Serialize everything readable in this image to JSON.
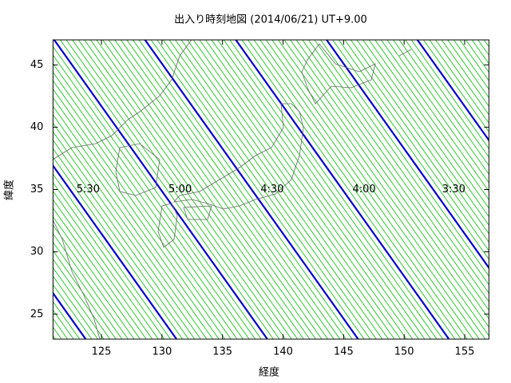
{
  "chart_data": {
    "type": "line",
    "title": "出入り時刻地図 (2014/06/21) UT+9.00",
    "xlabel": "経度",
    "ylabel": "緯度",
    "xlim": [
      121,
      157
    ],
    "ylim": [
      23,
      47
    ],
    "xticks": [
      125,
      130,
      135,
      140,
      145,
      150,
      155
    ],
    "yticks": [
      25,
      30,
      35,
      40,
      45
    ],
    "lat": [
      47,
      23
    ],
    "series": [
      {
        "color": "#00c000",
        "width": 0.8,
        "lines": [
          [
            103.6,
            121.2
          ],
          [
            104.1,
            121.7
          ],
          [
            104.6,
            122.2
          ],
          [
            105.1,
            122.7
          ],
          [
            105.6,
            123.2
          ],
          [
            106.6,
            124.2
          ],
          [
            107.1,
            124.7
          ],
          [
            107.6,
            125.2
          ],
          [
            108.1,
            125.7
          ],
          [
            108.6,
            126.2
          ],
          [
            109.1,
            126.7
          ],
          [
            109.6,
            127.2
          ],
          [
            110.1,
            127.7
          ],
          [
            110.6,
            128.2
          ],
          [
            111.1,
            128.7
          ],
          [
            111.6,
            129.2
          ],
          [
            112.1,
            129.7
          ],
          [
            112.6,
            130.2
          ],
          [
            113.1,
            130.7
          ],
          [
            114.1,
            131.7
          ],
          [
            114.6,
            132.2
          ],
          [
            115.1,
            132.7
          ],
          [
            115.6,
            133.2
          ],
          [
            116.1,
            133.7
          ],
          [
            116.6,
            134.2
          ],
          [
            117.1,
            134.7
          ],
          [
            117.6,
            135.2
          ],
          [
            118.1,
            135.7
          ],
          [
            118.6,
            136.2
          ],
          [
            119.1,
            136.7
          ],
          [
            119.6,
            137.2
          ],
          [
            120.1,
            137.7
          ],
          [
            120.6,
            138.2
          ],
          [
            121.6,
            139.2
          ],
          [
            122.1,
            139.7
          ],
          [
            122.6,
            140.2
          ],
          [
            123.1,
            140.7
          ],
          [
            123.6,
            141.2
          ],
          [
            124.1,
            141.7
          ],
          [
            124.6,
            142.2
          ],
          [
            125.1,
            142.7
          ],
          [
            125.6,
            143.2
          ],
          [
            126.1,
            143.7
          ],
          [
            126.6,
            144.2
          ],
          [
            127.1,
            144.7
          ],
          [
            127.6,
            145.2
          ],
          [
            128.1,
            145.7
          ],
          [
            129.1,
            146.7
          ],
          [
            129.6,
            147.2
          ],
          [
            130.1,
            147.7
          ],
          [
            130.6,
            148.2
          ],
          [
            131.1,
            148.7
          ],
          [
            131.6,
            149.2
          ],
          [
            132.1,
            149.7
          ],
          [
            132.6,
            150.2
          ],
          [
            133.1,
            150.7
          ],
          [
            133.6,
            151.2
          ],
          [
            134.1,
            151.7
          ],
          [
            134.6,
            152.2
          ],
          [
            135.1,
            152.7
          ],
          [
            135.6,
            153.2
          ],
          [
            136.6,
            154.2
          ],
          [
            137.1,
            154.7
          ],
          [
            137.6,
            155.2
          ],
          [
            138.1,
            155.7
          ],
          [
            138.6,
            156.2
          ],
          [
            139.1,
            156.7
          ],
          [
            139.6,
            157.2
          ],
          [
            140.1,
            157.7
          ],
          [
            140.6,
            158.2
          ],
          [
            141.1,
            158.7
          ],
          [
            141.6,
            159.2
          ],
          [
            142.1,
            159.7
          ],
          [
            142.6,
            160.2
          ],
          [
            143.1,
            160.7
          ],
          [
            144.1,
            161.7
          ],
          [
            144.6,
            162.2
          ],
          [
            145.1,
            162.7
          ],
          [
            145.6,
            163.2
          ],
          [
            146.1,
            163.7
          ],
          [
            146.6,
            164.2
          ],
          [
            147.1,
            164.7
          ],
          [
            147.6,
            165.2
          ],
          [
            148.1,
            165.7
          ],
          [
            148.6,
            166.2
          ],
          [
            149.1,
            166.7
          ],
          [
            149.6,
            167.2
          ],
          [
            150.1,
            167.7
          ],
          [
            150.6,
            168.2
          ],
          [
            151.6,
            169.2
          ],
          [
            152.1,
            169.7
          ],
          [
            152.6,
            170.2
          ],
          [
            153.1,
            170.7
          ],
          [
            153.6,
            171.2
          ],
          [
            154.1,
            171.7
          ],
          [
            154.6,
            172.2
          ],
          [
            155.1,
            172.7
          ],
          [
            155.6,
            173.2
          ],
          [
            156.1,
            173.7
          ],
          [
            156.6,
            174.2
          ]
        ]
      },
      {
        "color": "#0000cc",
        "width": 2.2,
        "lines": [
          [
            106.1,
            123.7
          ],
          [
            113.6,
            131.2
          ],
          [
            121.1,
            138.7
          ],
          [
            128.6,
            146.2
          ],
          [
            136.1,
            153.7
          ],
          [
            143.6,
            161.2
          ],
          [
            151.1,
            168.7
          ]
        ]
      }
    ],
    "annotations": [
      {
        "text": "5:30",
        "x": 123.9,
        "y": 35
      },
      {
        "text": "5:00",
        "x": 131.5,
        "y": 35
      },
      {
        "text": "4:30",
        "x": 139.1,
        "y": 35
      },
      {
        "text": "4:00",
        "x": 146.7,
        "y": 35
      },
      {
        "text": "3:30",
        "x": 154.1,
        "y": 35
      }
    ]
  }
}
